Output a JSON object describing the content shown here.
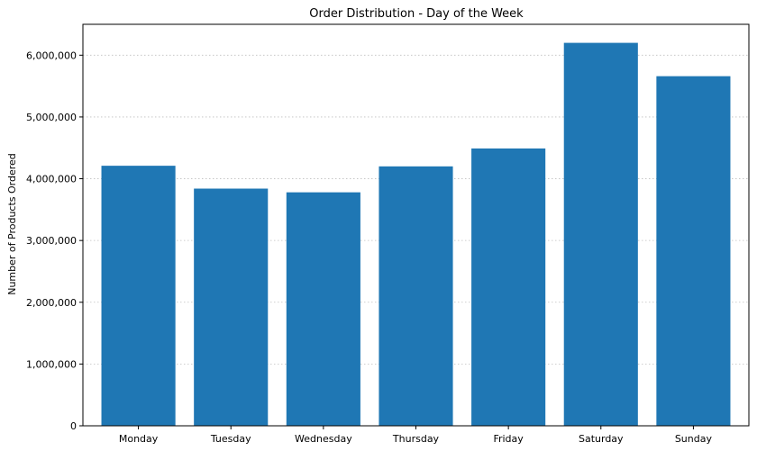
{
  "chart_data": {
    "type": "bar",
    "title": "Order Distribution - Day of the Week",
    "xlabel": "",
    "ylabel": "Number of Products Ordered",
    "categories": [
      "Monday",
      "Tuesday",
      "Wednesday",
      "Thursday",
      "Friday",
      "Saturday",
      "Sunday"
    ],
    "values": [
      4210000,
      3840000,
      3780000,
      4200000,
      4490000,
      6200000,
      5660000
    ],
    "ylim": [
      0,
      6500000
    ],
    "yticks": [
      0,
      1000000,
      2000000,
      3000000,
      4000000,
      5000000,
      6000000
    ],
    "ytick_labels": [
      "0",
      "1,000,000",
      "2,000,000",
      "3,000,000",
      "4,000,000",
      "5,000,000",
      "6,000,000"
    ],
    "bar_color": "#1f77b4",
    "grid": "y",
    "legend": "none"
  }
}
